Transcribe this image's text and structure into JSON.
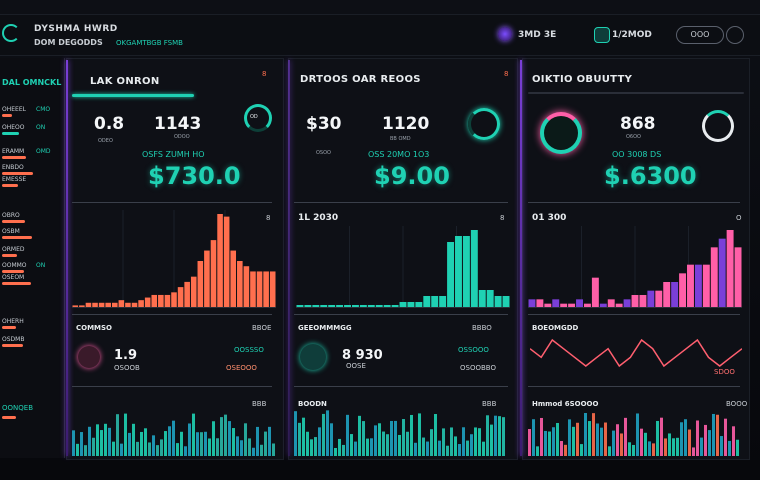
{
  "topbar": {
    "brand_line1": "DYSHMA HWRD",
    "brand_line2": "DOM DEGODDS",
    "brand_sub": "OKGAMTBGB FSMB",
    "user_label": "3MD 3E",
    "date_label": "1/2MOD",
    "pill_label": "OOO"
  },
  "sidebar": {
    "title": "DAL OMNCKL",
    "rows": [
      {
        "label": "OHEEEL",
        "value": "CMO"
      },
      {
        "label": "OHEOO",
        "value": "ON"
      },
      {
        "label": "ERAMM",
        "value": "OMD"
      },
      {
        "label": "ENBDO",
        "value": ""
      },
      {
        "label": "EMESSE",
        "value": ""
      },
      {
        "label": "OBRO",
        "value": ""
      },
      {
        "label": "OSBM",
        "value": ""
      },
      {
        "label": "ORMED",
        "value": ""
      },
      {
        "label": "OOMMO",
        "value": "ON"
      },
      {
        "label": "OSEOM",
        "value": ""
      },
      {
        "label": "OHERH",
        "value": ""
      },
      {
        "label": "OSDMB",
        "value": ""
      }
    ],
    "bottom_label": "OONQEB"
  },
  "panels": [
    {
      "title": "LAK ONRON",
      "corner": "8",
      "kpi_a": "0.8",
      "kpi_a_sub": "ODEO",
      "kpi_b": "1143",
      "kpi_b_sub": "ODOO",
      "ring_label": "OD",
      "mid_label": "OSFS ZUMH HO",
      "big_value": "$730.0",
      "chart_head": "",
      "chart_head_right": "8",
      "section_title": "COMMSO",
      "section_right": "BBOE",
      "section_value": "1.9",
      "section_sm": "OSOOB",
      "section_teal": "OOSSSO",
      "section_pink": "OSEOOO",
      "bottom_right": "BBB"
    },
    {
      "title": "DRTOOS OAR REOOS",
      "corner": "8",
      "kpi_a": "$30",
      "kpi_a_sub": "OSOO",
      "kpi_b": "1120",
      "kpi_b_sub": "BB OMD",
      "ring_label": "",
      "mid_label": "OSS 20MO 1O3",
      "big_value": "$9.00",
      "chart_head": "1L 2030",
      "chart_head_right": "8",
      "section_title": "GEEOMMMGG",
      "section_right": "BBBO",
      "section_value": "8 930",
      "section_sm": "OOSE",
      "section_teal": "OSSOOO",
      "section_pink": "OSOOBBO",
      "bottom_left": "BOODN",
      "bottom_right": "BBB"
    },
    {
      "title": "OIKTIO OBUUTTY",
      "corner": "",
      "kpi_a": "",
      "kpi_a_sub": "",
      "kpi_b": "868",
      "kpi_b_sub": "O6OO",
      "ring_label": "",
      "mid_label": "OO 3008 DS",
      "big_value": "$.6300",
      "chart_head": "01 300",
      "chart_head_right": "O",
      "section_title": "BOEOMGDD",
      "section_right": "",
      "section_value": "",
      "section_sm": "",
      "section_teal": "",
      "section_pink": "SDOO",
      "bottom_left": "Hmmod 6SOOOO",
      "bottom_right": "BOOO"
    }
  ],
  "colors": {
    "teal": "#1fd1b3",
    "orange": "#ff6f4e",
    "pink": "#ff5fa8",
    "purple": "#8b4cf0"
  },
  "chart_data": [
    {
      "type": "bar",
      "title": "LAK ONRON",
      "values": [
        1,
        1,
        2,
        2,
        2,
        2,
        2,
        3,
        2,
        2,
        3,
        4,
        5,
        5,
        5,
        6,
        8,
        10,
        12,
        18,
        22,
        26,
        36,
        35,
        22,
        18,
        16,
        14,
        14,
        14,
        14
      ]
    },
    {
      "type": "bar",
      "title": "DRTOOS OAR REOOS",
      "values": [
        1,
        1,
        1,
        1,
        1,
        1,
        1,
        1,
        1,
        1,
        1,
        1,
        1,
        2,
        2,
        2,
        4,
        4,
        4,
        22,
        24,
        24,
        26,
        6,
        6,
        4,
        4
      ]
    },
    {
      "type": "bar",
      "title": "OIKTIO OBUUTTY",
      "values": [
        2,
        2,
        1,
        2,
        1,
        1,
        2,
        1,
        7,
        1,
        2,
        1,
        2,
        3,
        3,
        4,
        4,
        6,
        6,
        8,
        10,
        10,
        10,
        14,
        16,
        18,
        14
      ]
    },
    {
      "type": "line",
      "title": "BOEOMGDD",
      "values": [
        6,
        5,
        7,
        6,
        5,
        4,
        5,
        6,
        4,
        5,
        7,
        6,
        4,
        5,
        6,
        7,
        5,
        4,
        5,
        6
      ]
    }
  ]
}
